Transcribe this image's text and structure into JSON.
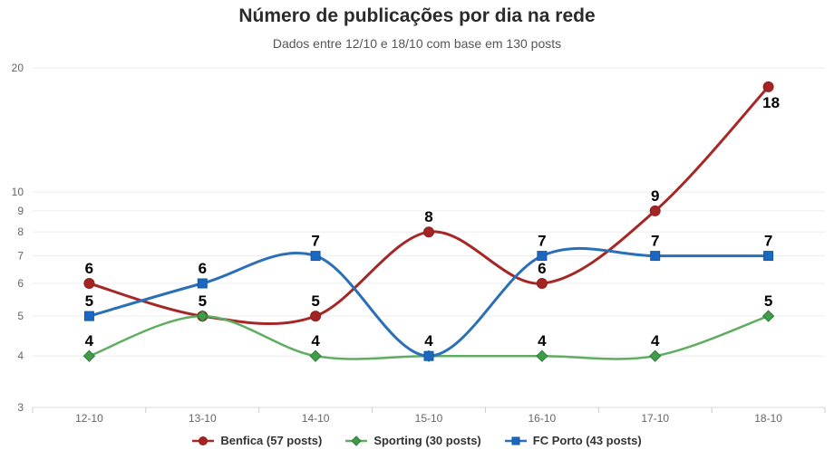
{
  "chart_data": {
    "type": "line",
    "line_shape": "spline",
    "title": "Número de publicações por dia na rede",
    "subtitle": "Dados entre 12/10 e 18/10 com base em 130 posts",
    "categories": [
      "12-10",
      "13-10",
      "14-10",
      "15-10",
      "16-10",
      "17-10",
      "18-10"
    ],
    "series": [
      {
        "name": "Benfica (57 posts)",
        "values": [
          6,
          5,
          5,
          8,
          6,
          9,
          18
        ],
        "marker": "circle",
        "line_color": "#a52826",
        "marker_color": "#a32423",
        "marker_edge": "#8e1f1e",
        "line_width": 3
      },
      {
        "name": "Sporting (30 posts)",
        "values": [
          4,
          5,
          4,
          4,
          4,
          4,
          5
        ],
        "marker": "diamond",
        "line_color": "#5fad60",
        "marker_color": "#3f9c48",
        "marker_edge": "#2e7d38",
        "line_width": 2.5
      },
      {
        "name": "FC Porto (43 posts)",
        "values": [
          5,
          6,
          7,
          4,
          7,
          7,
          7
        ],
        "marker": "square",
        "line_color": "#2a6fb8",
        "marker_color": "#1b68c0",
        "marker_edge": "#15579f",
        "line_width": 3
      }
    ],
    "yaxis": {
      "scale": "log",
      "min": 3,
      "max": 21,
      "ticks": [
        3,
        4,
        5,
        6,
        7,
        8,
        9,
        10,
        20
      ]
    },
    "xlabel": "",
    "ylabel": "",
    "grid": true,
    "legend_position": "bottom",
    "data_labels": true
  },
  "colors": {
    "background": "#ffffff",
    "grid": "#ececec",
    "axis_line": "#d8d8d8",
    "tick": "#cccccc",
    "axis_label": "#666666",
    "title": "#2b2b2b",
    "subtitle": "#565656",
    "data_label": "#000000"
  }
}
